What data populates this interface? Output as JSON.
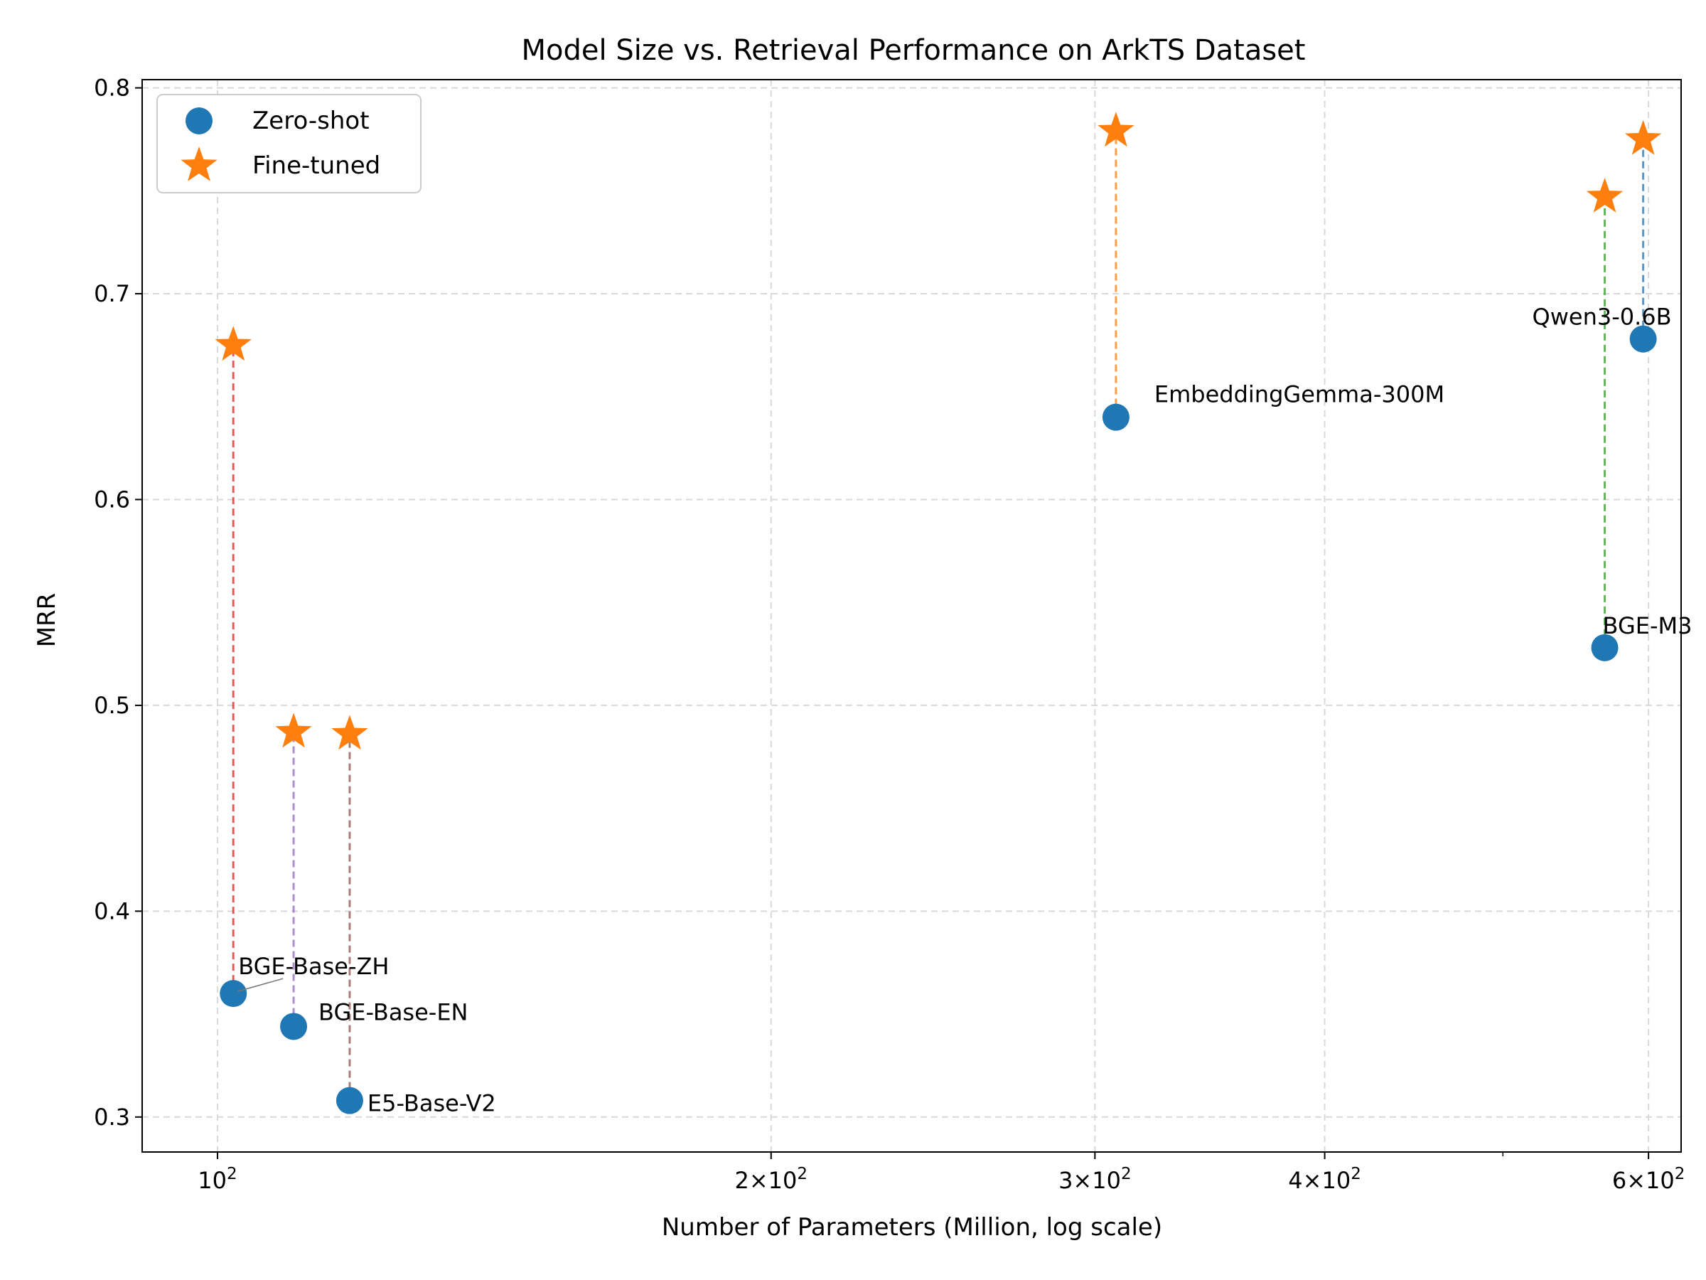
{
  "chart_data": {
    "type": "scatter",
    "title": "Model Size vs. Retrieval Performance on ArkTS Dataset",
    "xlabel": "Number of Parameters (Million, log scale)",
    "ylabel": "MRR",
    "x_scale": "log",
    "xlim": [
      91,
      625
    ],
    "ylim": [
      0.283,
      0.804
    ],
    "x_ticks": [
      {
        "value": 100,
        "base": "10",
        "exp": "2"
      },
      {
        "value": 200,
        "base": "2×10",
        "exp": "2"
      },
      {
        "value": 300,
        "base": "3×10",
        "exp": "2"
      },
      {
        "value": 400,
        "base": "4×10",
        "exp": "2"
      },
      {
        "value": 600,
        "base": "6×10",
        "exp": "2"
      }
    ],
    "x_minor_ticks": [
      500
    ],
    "y_ticks": [
      "0.3",
      "0.4",
      "0.5",
      "0.6",
      "0.7",
      "0.8"
    ],
    "grid": true,
    "legend": {
      "position": "upper-left",
      "entries": [
        {
          "label": "Zero-shot",
          "marker": "circle",
          "color": "#1f77b4"
        },
        {
          "label": "Fine-tuned",
          "marker": "star",
          "color": "#ff7f0e"
        }
      ]
    },
    "series": [
      {
        "name": "Zero-shot",
        "color": "#1f77b4",
        "marker": "circle"
      },
      {
        "name": "Fine-tuned",
        "color": "#ff7f0e",
        "marker": "star"
      }
    ],
    "models": [
      {
        "name": "BGE-Base-ZH",
        "params": 102,
        "zero_shot": 0.36,
        "fine_tuned": 0.675,
        "line_color": "#d62728"
      },
      {
        "name": "BGE-Base-EN",
        "params": 110,
        "zero_shot": 0.344,
        "fine_tuned": 0.487,
        "line_color": "#9467bd"
      },
      {
        "name": "E5-Base-V2",
        "params": 118,
        "zero_shot": 0.308,
        "fine_tuned": 0.486,
        "line_color": "#8c564b"
      },
      {
        "name": "EmbeddingGemma-300M",
        "params": 308,
        "zero_shot": 0.64,
        "fine_tuned": 0.779,
        "line_color": "#ff7f0e"
      },
      {
        "name": "BGE-M3",
        "params": 568,
        "zero_shot": 0.528,
        "fine_tuned": 0.747,
        "line_color": "#2ca02c"
      },
      {
        "name": "Qwen3-0.6B",
        "params": 596,
        "zero_shot": 0.678,
        "fine_tuned": 0.775,
        "line_color": "#1f77b4"
      }
    ]
  }
}
